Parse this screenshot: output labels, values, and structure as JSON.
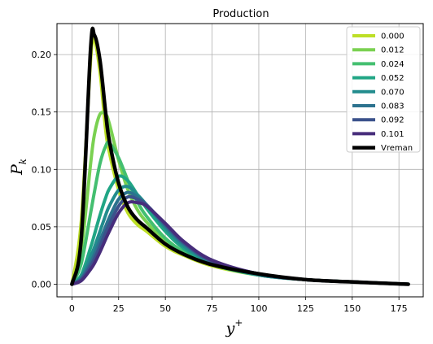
{
  "chart_data": {
    "type": "line",
    "title": "Production",
    "xlabel": "y",
    "xlabel_sup": "+",
    "ylabel": "P",
    "ylabel_sub": "k",
    "xlim": [
      -8,
      188
    ],
    "ylim": [
      -0.011,
      0.227
    ],
    "x_ticks": [
      0,
      25,
      50,
      75,
      100,
      125,
      150,
      175
    ],
    "y_ticks": [
      0.0,
      0.05,
      0.1,
      0.15,
      0.2
    ],
    "y_tick_labels": [
      "0.00",
      "0.05",
      "0.10",
      "0.15",
      "0.20"
    ],
    "grid": true,
    "legend_position": "top-right",
    "x": [
      0,
      5,
      10,
      12,
      15,
      18,
      20,
      25,
      30,
      35,
      40,
      50,
      60,
      75,
      100,
      125,
      150,
      180
    ],
    "series": [
      {
        "name": "0.000",
        "color": "#bddf26",
        "values": [
          0,
          0.055,
          0.195,
          0.212,
          0.185,
          0.135,
          0.115,
          0.082,
          0.062,
          0.052,
          0.046,
          0.033,
          0.025,
          0.016,
          0.008,
          0.004,
          0.002,
          0.0
        ]
      },
      {
        "name": "0.012",
        "color": "#7ad151",
        "values": [
          0,
          0.03,
          0.105,
          0.13,
          0.148,
          0.148,
          0.14,
          0.108,
          0.082,
          0.065,
          0.054,
          0.037,
          0.027,
          0.017,
          0.008,
          0.004,
          0.002,
          0.0
        ]
      },
      {
        "name": "0.024",
        "color": "#44bf70",
        "values": [
          0,
          0.018,
          0.062,
          0.08,
          0.105,
          0.12,
          0.123,
          0.11,
          0.09,
          0.072,
          0.059,
          0.04,
          0.028,
          0.017,
          0.008,
          0.004,
          0.002,
          0.0
        ]
      },
      {
        "name": "0.052",
        "color": "#21a685",
        "values": [
          0,
          0.008,
          0.032,
          0.043,
          0.06,
          0.075,
          0.083,
          0.094,
          0.09,
          0.078,
          0.066,
          0.046,
          0.031,
          0.018,
          0.008,
          0.004,
          0.002,
          0.0
        ]
      },
      {
        "name": "0.070",
        "color": "#228c8d",
        "values": [
          0,
          0.006,
          0.024,
          0.032,
          0.046,
          0.06,
          0.068,
          0.082,
          0.085,
          0.078,
          0.069,
          0.049,
          0.033,
          0.019,
          0.008,
          0.004,
          0.002,
          0.0
        ]
      },
      {
        "name": "0.083",
        "color": "#2c728e",
        "values": [
          0,
          0.005,
          0.019,
          0.026,
          0.038,
          0.05,
          0.058,
          0.074,
          0.08,
          0.076,
          0.069,
          0.051,
          0.035,
          0.02,
          0.009,
          0.004,
          0.002,
          0.0
        ]
      },
      {
        "name": "0.092",
        "color": "#3b528b",
        "values": [
          0,
          0.004,
          0.016,
          0.022,
          0.033,
          0.045,
          0.052,
          0.068,
          0.076,
          0.074,
          0.069,
          0.052,
          0.036,
          0.02,
          0.009,
          0.004,
          0.002,
          0.0
        ]
      },
      {
        "name": "0.101",
        "color": "#472d7b",
        "values": [
          0,
          0.003,
          0.013,
          0.018,
          0.028,
          0.039,
          0.046,
          0.062,
          0.071,
          0.071,
          0.068,
          0.053,
          0.037,
          0.021,
          0.009,
          0.004,
          0.002,
          0.0
        ]
      },
      {
        "name": "Vreman",
        "color": "#000000",
        "values": [
          0,
          0.04,
          0.205,
          0.217,
          0.195,
          0.15,
          0.125,
          0.088,
          0.067,
          0.056,
          0.049,
          0.035,
          0.026,
          0.017,
          0.009,
          0.004,
          0.002,
          0.0
        ]
      }
    ]
  }
}
